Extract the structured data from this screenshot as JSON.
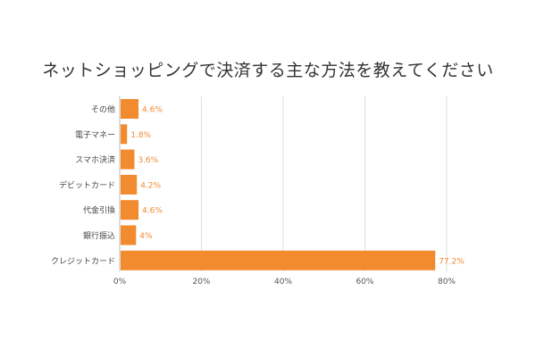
{
  "chart_data": {
    "type": "bar",
    "orientation": "horizontal",
    "title": "ネットショッピングで決済する主な方法を教えてください",
    "categories": [
      "その他",
      "電子マネー",
      "スマホ決済",
      "デビットカード",
      "代金引換",
      "銀行振込",
      "クレジットカード"
    ],
    "values": [
      4.6,
      1.8,
      3.6,
      4.2,
      4.6,
      4,
      77.2
    ],
    "value_labels": [
      "4.6%",
      "1.8%",
      "3.6%",
      "4.2%",
      "4.6%",
      "4%",
      "77.2%"
    ],
    "xlim": [
      0,
      80
    ],
    "xticks": [
      0,
      20,
      40,
      60,
      80
    ],
    "xtick_labels": [
      "0%",
      "20%",
      "40%",
      "60%",
      "80%"
    ],
    "grid": "vertical",
    "legend": "none",
    "colors": {
      "bar": "#f28a2e",
      "value_label": "#f28a2e",
      "grid": "#dddddd",
      "axis": "#bbbbbb"
    }
  }
}
